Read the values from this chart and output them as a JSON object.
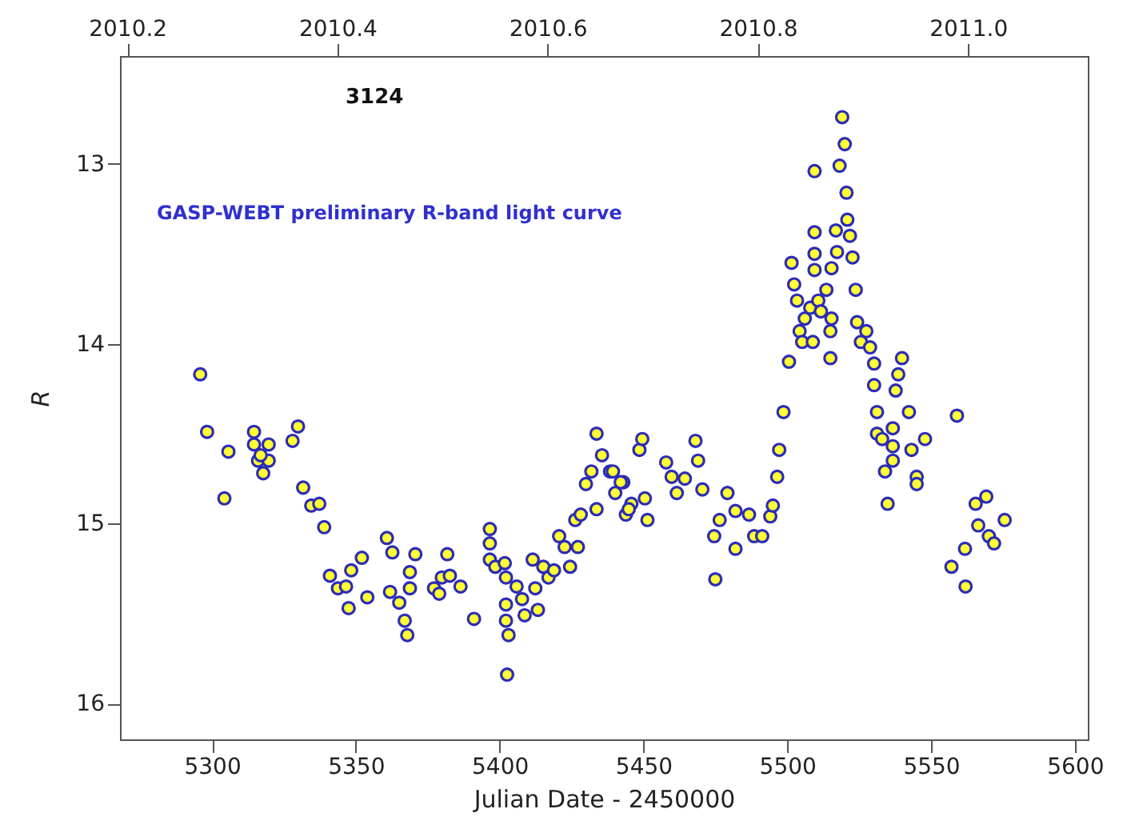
{
  "chart_data": {
    "type": "scatter",
    "xlabel": "Julian Date - 2450000",
    "ylabel": "R",
    "annotations": [
      "3124",
      "GASP-WEBT preliminary R-band light curve"
    ],
    "xlim": [
      5268,
      5604.5
    ],
    "xticks": [
      5300,
      5350,
      5400,
      5450,
      5500,
      5550,
      5600
    ],
    "x2lim": [
      2010.193,
      2011.114
    ],
    "x2ticks": [
      {
        "value": 2010.2,
        "label": "2010.2"
      },
      {
        "value": 2010.4,
        "label": "2010.4"
      },
      {
        "value": 2010.6,
        "label": "2010.6"
      },
      {
        "value": 2010.8,
        "label": "2010.8"
      },
      {
        "value": 2011.0,
        "label": "2011.0"
      }
    ],
    "ylim": [
      16.2,
      12.4
    ],
    "yticks": [
      13,
      14,
      15,
      16
    ],
    "grid": false,
    "marker": "circle",
    "series": [
      {
        "color": "#ffff33",
        "x": [
          5295.9,
          5298.3,
          5305.7,
          5304.3,
          5314.6,
          5314.6,
          5316.0,
          5317.8,
          5319.7,
          5319.7,
          5316.9,
          5328.0,
          5329.9,
          5331.7,
          5334.5,
          5337.3,
          5339.0,
          5341.0,
          5343.8,
          5346.6,
          5348.4,
          5352.1,
          5354.0,
          5347.5,
          5360.8,
          5362.7,
          5370.7,
          5381.8,
          5361.9,
          5365.1,
          5367.0,
          5367.9,
          5368.8,
          5368.8,
          5377.2,
          5379.9,
          5382.7,
          5386.4,
          5379.0,
          5391.1,
          5396.6,
          5396.6,
          5396.6,
          5398.5,
          5401.8,
          5402.2,
          5402.2,
          5402.2,
          5402.6,
          5403.1,
          5405.9,
          5407.8,
          5408.7,
          5411.5,
          5412.4,
          5413.3,
          5415.2,
          5417.0,
          5418.9,
          5420.7,
          5422.6,
          5424.5,
          5426.3,
          5427.2,
          5428.2,
          5430.0,
          5431.9,
          5433.7,
          5433.7,
          5435.6,
          5438.4,
          5440.2,
          5443.0,
          5443.9,
          5445.8,
          5439.4,
          5442.1,
          5444.9,
          5448.6,
          5449.6,
          5450.5,
          5451.4,
          5457.9,
          5459.8,
          5461.6,
          5464.4,
          5468.1,
          5469.0,
          5470.5,
          5474.6,
          5476.5,
          5479.2,
          5482.0,
          5482.0,
          5486.7,
          5488.5,
          5491.3,
          5494.1,
          5495.0,
          5496.5,
          5497.2,
          5498.7,
          5500.6,
          5501.5,
          5502.4,
          5503.4,
          5504.3,
          5505.2,
          5506.1,
          5508.0,
          5508.9,
          5509.5,
          5509.5,
          5509.5,
          5509.5,
          5510.8,
          5511.7,
          5513.6,
          5515.0,
          5515.0,
          5515.4,
          5515.4,
          5516.9,
          5517.3,
          5518.2,
          5519.1,
          5520.0,
          5520.6,
          5520.9,
          5521.8,
          5522.7,
          5523.8,
          5524.3,
          5525.6,
          5527.5,
          5528.8,
          5530.2,
          5530.2,
          5531.2,
          5531.2,
          5533.0,
          5534.0,
          5534.9,
          5536.7,
          5536.7,
          5536.7,
          5537.7,
          5538.6,
          5539.9,
          5542.3,
          5543.2,
          5545.0,
          5545.0,
          5547.9,
          5559.0,
          5557.1,
          5561.8,
          5565.5,
          5569.2,
          5566.4,
          5570.1,
          5571.9,
          5575.6,
          5562.0,
          5475.0
        ],
        "values": [
          14.17,
          14.49,
          14.6,
          14.86,
          14.49,
          14.56,
          14.65,
          14.72,
          14.56,
          14.65,
          14.62,
          14.54,
          14.46,
          14.8,
          14.9,
          14.89,
          15.02,
          15.29,
          15.36,
          15.35,
          15.26,
          15.19,
          15.41,
          15.47,
          15.08,
          15.16,
          15.17,
          15.17,
          15.38,
          15.44,
          15.54,
          15.62,
          15.27,
          15.36,
          15.36,
          15.3,
          15.29,
          15.35,
          15.39,
          15.53,
          15.03,
          15.11,
          15.2,
          15.24,
          15.22,
          15.3,
          15.45,
          15.54,
          15.84,
          15.62,
          15.35,
          15.42,
          15.51,
          15.2,
          15.36,
          15.48,
          15.24,
          15.3,
          15.26,
          15.07,
          15.13,
          15.24,
          14.98,
          15.13,
          14.95,
          14.78,
          14.71,
          14.5,
          14.92,
          14.62,
          14.71,
          14.83,
          14.77,
          14.95,
          14.89,
          14.71,
          14.77,
          14.92,
          14.59,
          14.53,
          14.86,
          14.98,
          14.66,
          14.74,
          14.83,
          14.75,
          14.54,
          14.65,
          14.81,
          15.07,
          14.98,
          14.83,
          15.14,
          14.93,
          14.95,
          15.07,
          15.07,
          14.96,
          14.9,
          14.74,
          14.59,
          14.38,
          14.1,
          13.55,
          13.67,
          13.76,
          13.93,
          13.99,
          13.86,
          13.8,
          13.99,
          13.04,
          13.38,
          13.5,
          13.59,
          13.76,
          13.82,
          13.7,
          13.93,
          14.08,
          13.58,
          13.86,
          13.37,
          13.49,
          13.01,
          12.74,
          12.89,
          13.16,
          13.31,
          13.4,
          13.52,
          13.7,
          13.88,
          13.99,
          13.93,
          14.02,
          14.11,
          14.23,
          14.38,
          14.5,
          14.53,
          14.71,
          14.89,
          14.47,
          14.57,
          14.65,
          14.26,
          14.17,
          14.08,
          14.38,
          14.59,
          14.74,
          14.78,
          14.53,
          14.4,
          15.24,
          15.14,
          14.89,
          14.85,
          15.01,
          15.07,
          15.11,
          14.98,
          15.35,
          15.31
        ]
      }
    ]
  }
}
